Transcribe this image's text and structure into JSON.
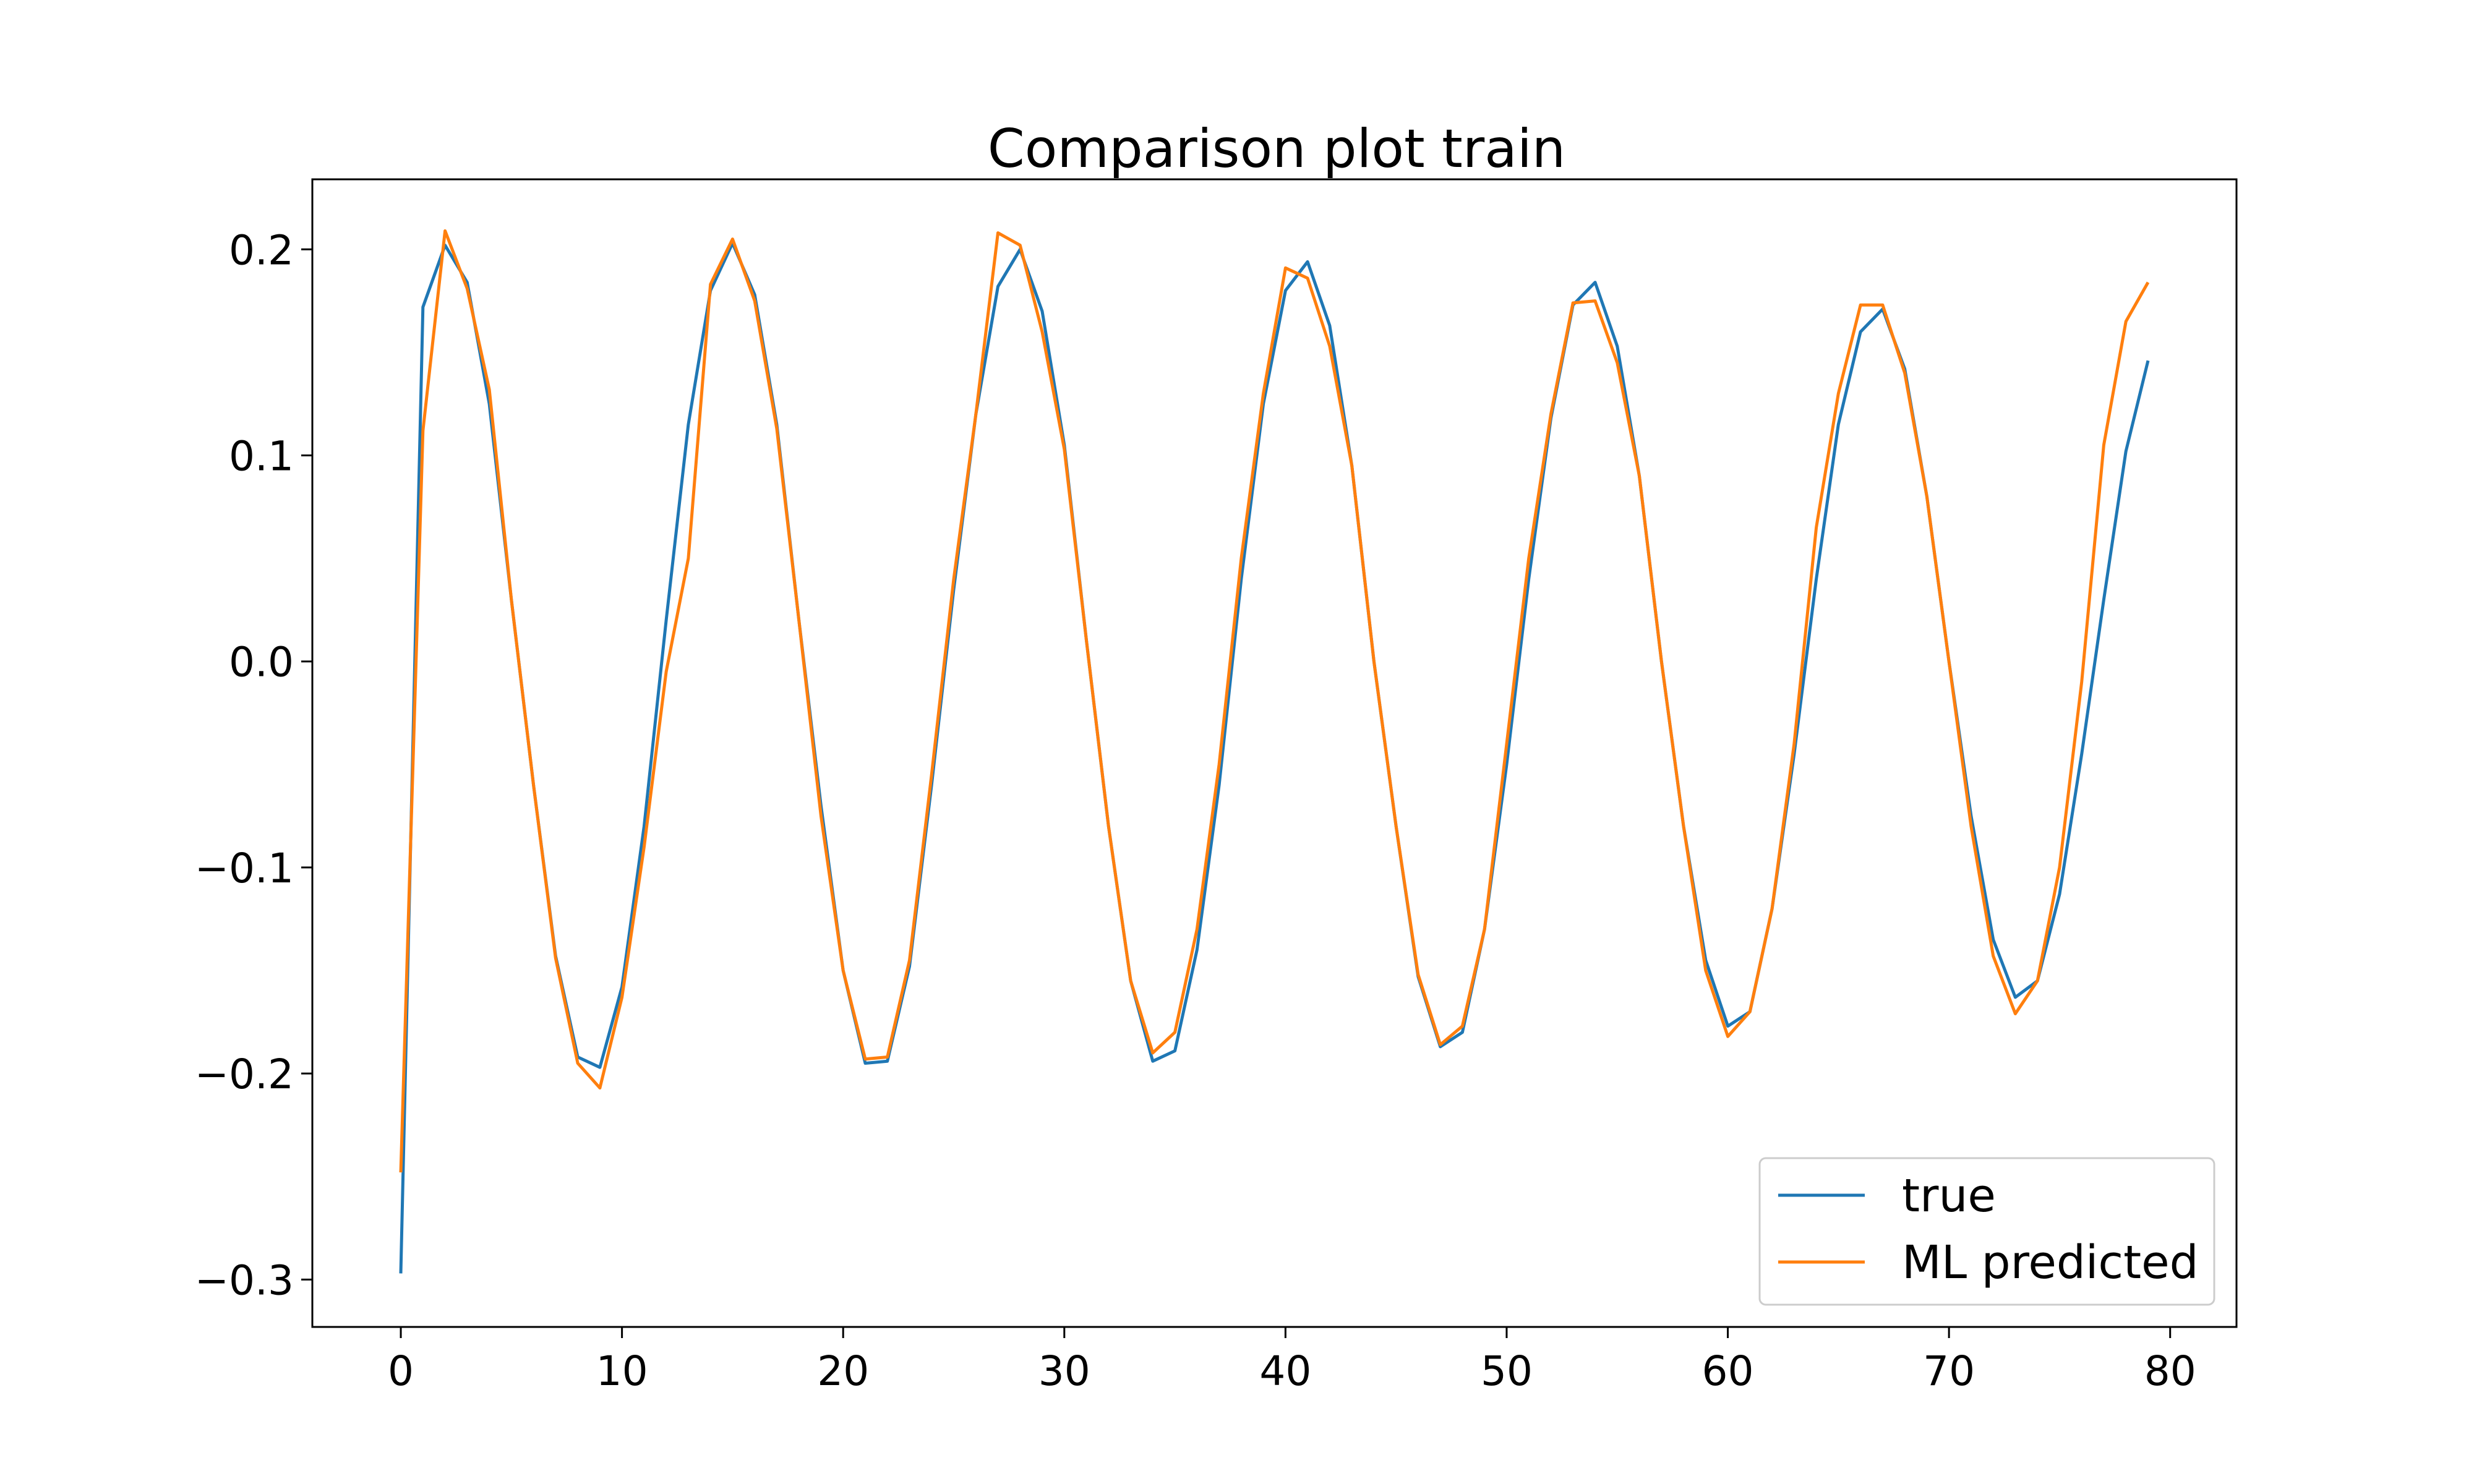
{
  "chart_data": {
    "type": "line",
    "title": "Comparison plot train",
    "xlabel": "",
    "ylabel": "",
    "xlim": [
      -4,
      83
    ],
    "ylim": [
      -0.323,
      0.234
    ],
    "xticks": [
      0,
      10,
      20,
      30,
      40,
      50,
      60,
      70,
      80
    ],
    "xtick_labels": [
      "0",
      "10",
      "20",
      "30",
      "40",
      "50",
      "60",
      "70",
      "80"
    ],
    "yticks": [
      -0.3,
      -0.2,
      -0.1,
      0.0,
      0.1,
      0.2
    ],
    "ytick_labels": [
      "−0.3",
      "−0.2",
      "−0.1",
      "0.0",
      "0.1",
      "0.2"
    ],
    "grid": false,
    "legend_position": "lower-right",
    "x": [
      0,
      1,
      2,
      3,
      4,
      5,
      6,
      7,
      8,
      9,
      10,
      11,
      12,
      13,
      14,
      15,
      16,
      17,
      18,
      19,
      20,
      21,
      22,
      23,
      24,
      25,
      26,
      27,
      28,
      29,
      30,
      31,
      32,
      33,
      34,
      35,
      36,
      37,
      38,
      39,
      40,
      41,
      42,
      43,
      44,
      45,
      46,
      47,
      48,
      49,
      50,
      51,
      52,
      53,
      54,
      55,
      56,
      57,
      58,
      59,
      60,
      61,
      62,
      63,
      64,
      65,
      66,
      67,
      68,
      69,
      70,
      71,
      72,
      73,
      74,
      75,
      76,
      77,
      78,
      79
    ],
    "series": [
      {
        "name": "true",
        "color": "#1f77b4",
        "values": [
          -0.297,
          0.172,
          0.202,
          0.184,
          0.125,
          0.03,
          -0.06,
          -0.143,
          -0.192,
          -0.197,
          -0.158,
          -0.08,
          0.02,
          0.115,
          0.18,
          0.203,
          0.178,
          0.115,
          0.02,
          -0.07,
          -0.15,
          -0.195,
          -0.194,
          -0.148,
          -0.06,
          0.035,
          0.12,
          0.182,
          0.2,
          0.17,
          0.105,
          0.01,
          -0.08,
          -0.155,
          -0.194,
          -0.189,
          -0.14,
          -0.06,
          0.04,
          0.125,
          0.18,
          0.194,
          0.163,
          0.095,
          0.0,
          -0.08,
          -0.153,
          -0.187,
          -0.18,
          -0.13,
          -0.05,
          0.04,
          0.118,
          0.173,
          0.184,
          0.153,
          0.09,
          0.0,
          -0.08,
          -0.145,
          -0.177,
          -0.17,
          -0.12,
          -0.045,
          0.04,
          0.115,
          0.16,
          0.171,
          0.142,
          0.08,
          0.0,
          -0.075,
          -0.135,
          -0.163,
          -0.155,
          -0.113,
          -0.045,
          0.03,
          0.102,
          0.146
        ]
      },
      {
        "name": "ML predicted",
        "color": "#ff7f0e",
        "values": [
          -0.248,
          0.112,
          0.209,
          0.181,
          0.132,
          0.03,
          -0.06,
          -0.144,
          -0.195,
          -0.207,
          -0.163,
          -0.09,
          -0.005,
          0.05,
          0.183,
          0.205,
          0.175,
          0.113,
          0.02,
          -0.075,
          -0.15,
          -0.193,
          -0.192,
          -0.145,
          -0.055,
          0.04,
          0.12,
          0.208,
          0.202,
          0.16,
          0.103,
          0.01,
          -0.08,
          -0.155,
          -0.19,
          -0.18,
          -0.13,
          -0.05,
          0.05,
          0.13,
          0.191,
          0.186,
          0.153,
          0.095,
          0.0,
          -0.08,
          -0.152,
          -0.186,
          -0.177,
          -0.13,
          -0.04,
          0.05,
          0.12,
          0.174,
          0.175,
          0.145,
          0.09,
          0.0,
          -0.08,
          -0.15,
          -0.182,
          -0.17,
          -0.12,
          -0.04,
          0.065,
          0.13,
          0.173,
          0.173,
          0.14,
          0.08,
          0.0,
          -0.08,
          -0.143,
          -0.171,
          -0.155,
          -0.1,
          -0.01,
          0.105,
          0.165,
          0.184
        ]
      }
    ]
  }
}
